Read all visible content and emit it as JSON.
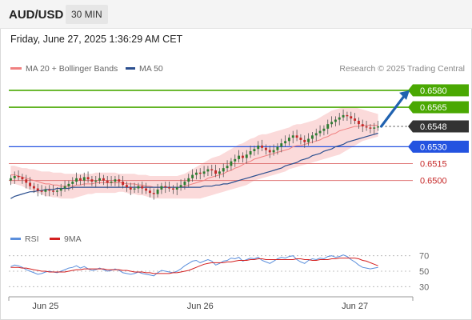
{
  "header": {
    "symbol": "AUD/USD",
    "timeframe": "30 MIN"
  },
  "timestamp": "Friday, June 27, 2025 1:36:29 AM CET",
  "credit": "Research © 2025 Trading Central",
  "colors": {
    "bull_candle": "#2e7d32",
    "bear_candle": "#c62828",
    "bollinger_fill": "#fbdada",
    "ma20": "#f08080",
    "ma50": "#2b4f8f",
    "green_level": "#4aa802",
    "blue_level": "#2453e0",
    "red_level": "#e07878",
    "arrow": "#2062b0",
    "rsi": "#5b8fdc",
    "rsi_ma": "#d42020"
  },
  "chart_data": [
    {
      "type": "candlestick",
      "title": "",
      "legend": [
        {
          "name": "MA 20 + Bollinger Bands",
          "color": "#f08080"
        },
        {
          "name": "MA 50",
          "color": "#2b4f8f"
        }
      ],
      "x_ticks": [
        "Jun 25",
        "Jun 26",
        "Jun 27"
      ],
      "ylim": [
        0.646,
        0.6592
      ],
      "levels": [
        {
          "label": "0.6580",
          "value": 0.658,
          "kind": "resistance"
        },
        {
          "label": "0.6565",
          "value": 0.6565,
          "kind": "resistance"
        },
        {
          "label": "0.6548",
          "value": 0.6548,
          "kind": "last_price"
        },
        {
          "label": "0.6530",
          "value": 0.653,
          "kind": "pivot"
        },
        {
          "label": "0.6515",
          "value": 0.6515,
          "kind": "support"
        },
        {
          "label": "0.6500",
          "value": 0.65,
          "kind": "support"
        }
      ],
      "close": [
        0.6502,
        0.6504,
        0.6503,
        0.6501,
        0.6498,
        0.6495,
        0.6493,
        0.6491,
        0.649,
        0.6492,
        0.6491,
        0.649,
        0.6491,
        0.6493,
        0.6495,
        0.6497,
        0.6499,
        0.6502,
        0.65,
        0.6503,
        0.6501,
        0.6499,
        0.65,
        0.6502,
        0.65,
        0.6498,
        0.6499,
        0.6501,
        0.6499,
        0.6496,
        0.6494,
        0.6492,
        0.6493,
        0.6495,
        0.6493,
        0.6491,
        0.6489,
        0.6488,
        0.6492,
        0.6495,
        0.6494,
        0.6493,
        0.6492,
        0.6494,
        0.6496,
        0.6499,
        0.6502,
        0.6505,
        0.6507,
        0.6506,
        0.6508,
        0.651,
        0.6509,
        0.6506,
        0.6508,
        0.6511,
        0.6513,
        0.6517,
        0.6519,
        0.6522,
        0.652,
        0.6523,
        0.6526,
        0.6528,
        0.6531,
        0.6529,
        0.6527,
        0.6525,
        0.6527,
        0.653,
        0.6533,
        0.6535,
        0.6538,
        0.654,
        0.6538,
        0.6536,
        0.6534,
        0.6537,
        0.654,
        0.6542,
        0.6544,
        0.6546,
        0.655,
        0.6552,
        0.6554,
        0.6556,
        0.6558,
        0.6557,
        0.6555,
        0.6553,
        0.655,
        0.6548,
        0.6547,
        0.6546,
        0.6547,
        0.6548
      ],
      "ma20": [
        0.6505,
        0.6505,
        0.6504,
        0.6503,
        0.6502,
        0.6501,
        0.65,
        0.6499,
        0.6498,
        0.6497,
        0.6497,
        0.6496,
        0.6496,
        0.6495,
        0.6495,
        0.6495,
        0.6495,
        0.6496,
        0.6496,
        0.6497,
        0.6497,
        0.6497,
        0.6498,
        0.6498,
        0.6498,
        0.6498,
        0.6498,
        0.6498,
        0.6498,
        0.6498,
        0.6497,
        0.6497,
        0.6497,
        0.6496,
        0.6496,
        0.6495,
        0.6495,
        0.6494,
        0.6494,
        0.6494,
        0.6494,
        0.6494,
        0.6494,
        0.6494,
        0.6494,
        0.6495,
        0.6496,
        0.6497,
        0.6498,
        0.6499,
        0.65,
        0.6502,
        0.6503,
        0.6504,
        0.6505,
        0.6506,
        0.6508,
        0.6509,
        0.6511,
        0.6512,
        0.6514,
        0.6516,
        0.6517,
        0.6519,
        0.652,
        0.6521,
        0.6522,
        0.6523,
        0.6524,
        0.6525,
        0.6526,
        0.6527,
        0.6528,
        0.653,
        0.6531,
        0.6531,
        0.6532,
        0.6533,
        0.6534,
        0.6535,
        0.6536,
        0.6538,
        0.6539,
        0.6541,
        0.6542,
        0.6544,
        0.6545,
        0.6546,
        0.6547,
        0.6548,
        0.6548,
        0.6549,
        0.6549,
        0.6549,
        0.6549,
        0.6549
      ],
      "bb_upper": [
        0.6513,
        0.6513,
        0.6512,
        0.6511,
        0.6511,
        0.651,
        0.651,
        0.6509,
        0.6508,
        0.6508,
        0.6508,
        0.6507,
        0.6507,
        0.6507,
        0.6506,
        0.6506,
        0.6506,
        0.6506,
        0.6506,
        0.6506,
        0.6506,
        0.6506,
        0.6507,
        0.6507,
        0.6507,
        0.6507,
        0.6507,
        0.6507,
        0.6506,
        0.6506,
        0.6506,
        0.6506,
        0.6506,
        0.6505,
        0.6505,
        0.6505,
        0.6504,
        0.6504,
        0.6504,
        0.6504,
        0.6504,
        0.6504,
        0.6504,
        0.6504,
        0.6505,
        0.6506,
        0.6508,
        0.651,
        0.6512,
        0.6514,
        0.6516,
        0.6518,
        0.652,
        0.6521,
        0.6522,
        0.6524,
        0.6526,
        0.6528,
        0.653,
        0.6532,
        0.6533,
        0.6535,
        0.6537,
        0.6538,
        0.654,
        0.6541,
        0.6541,
        0.6542,
        0.6543,
        0.6544,
        0.6545,
        0.6546,
        0.6547,
        0.6549,
        0.655,
        0.655,
        0.6551,
        0.6552,
        0.6553,
        0.6554,
        0.6556,
        0.6558,
        0.656,
        0.6562,
        0.6563,
        0.6564,
        0.6565,
        0.6565,
        0.6565,
        0.6565,
        0.6564,
        0.6563,
        0.6562,
        0.6561,
        0.656,
        0.6559
      ],
      "bb_lower": [
        0.6497,
        0.6497,
        0.6496,
        0.6495,
        0.6493,
        0.6492,
        0.649,
        0.6489,
        0.6488,
        0.6486,
        0.6486,
        0.6485,
        0.6485,
        0.6484,
        0.6484,
        0.6484,
        0.6484,
        0.6485,
        0.6486,
        0.6487,
        0.6488,
        0.6488,
        0.6489,
        0.6489,
        0.6489,
        0.6489,
        0.6489,
        0.6489,
        0.649,
        0.649,
        0.6489,
        0.6488,
        0.6488,
        0.6487,
        0.6487,
        0.6486,
        0.6485,
        0.6484,
        0.6484,
        0.6484,
        0.6484,
        0.6484,
        0.6484,
        0.6484,
        0.6484,
        0.6484,
        0.6484,
        0.6484,
        0.6484,
        0.6484,
        0.6485,
        0.6486,
        0.6487,
        0.6488,
        0.6489,
        0.649,
        0.6491,
        0.6492,
        0.6493,
        0.6494,
        0.6495,
        0.6496,
        0.6498,
        0.65,
        0.6501,
        0.6502,
        0.6503,
        0.6504,
        0.6505,
        0.6506,
        0.6507,
        0.6508,
        0.651,
        0.6511,
        0.6512,
        0.6513,
        0.6514,
        0.6515,
        0.6516,
        0.6517,
        0.6518,
        0.6519,
        0.652,
        0.6521,
        0.6522,
        0.6523,
        0.6525,
        0.6527,
        0.6529,
        0.6531,
        0.6533,
        0.6535,
        0.6536,
        0.6537,
        0.6538,
        0.6539
      ],
      "ma50": [
        0.6484,
        0.6486,
        0.6487,
        0.6488,
        0.6489,
        0.649,
        0.649,
        0.6491,
        0.6491,
        0.6492,
        0.6492,
        0.6492,
        0.6493,
        0.6493,
        0.6493,
        0.6493,
        0.6494,
        0.6494,
        0.6494,
        0.6494,
        0.6494,
        0.6494,
        0.6494,
        0.6494,
        0.6494,
        0.6494,
        0.6494,
        0.6494,
        0.6494,
        0.6494,
        0.6494,
        0.6494,
        0.6494,
        0.6494,
        0.6494,
        0.6494,
        0.6494,
        0.6494,
        0.6494,
        0.6494,
        0.6494,
        0.6494,
        0.6494,
        0.6494,
        0.6494,
        0.6494,
        0.6494,
        0.6494,
        0.6494,
        0.6494,
        0.6495,
        0.6495,
        0.6495,
        0.6496,
        0.6496,
        0.6497,
        0.6497,
        0.6498,
        0.6499,
        0.65,
        0.6501,
        0.6502,
        0.6503,
        0.6504,
        0.6505,
        0.6506,
        0.6507,
        0.6508,
        0.6509,
        0.651,
        0.6511,
        0.6513,
        0.6514,
        0.6515,
        0.6516,
        0.6518,
        0.6519,
        0.652,
        0.6522,
        0.6523,
        0.6524,
        0.6526,
        0.6527,
        0.6528,
        0.653,
        0.6531,
        0.6532,
        0.6534,
        0.6535,
        0.6536,
        0.6537,
        0.6538,
        0.6539,
        0.654,
        0.6541,
        0.6542
      ],
      "projection": {
        "from": 0.6548,
        "to": 0.658
      }
    },
    {
      "type": "line",
      "title": "",
      "legend": [
        {
          "name": "RSI",
          "color": "#5b8fdc"
        },
        {
          "name": "9MA",
          "color": "#d42020"
        }
      ],
      "y_ticks": [
        "70",
        "50",
        "30"
      ],
      "ylim": [
        20,
        80
      ],
      "rsi": [
        56,
        58,
        57,
        55,
        52,
        50,
        48,
        46,
        47,
        49,
        50,
        49,
        48,
        50,
        52,
        54,
        55,
        57,
        54,
        56,
        53,
        51,
        52,
        54,
        52,
        50,
        51,
        53,
        51,
        48,
        47,
        46,
        47,
        49,
        47,
        46,
        45,
        44,
        48,
        51,
        50,
        49,
        48,
        50,
        53,
        57,
        60,
        63,
        64,
        61,
        63,
        65,
        63,
        58,
        60,
        63,
        64,
        67,
        66,
        68,
        63,
        65,
        67,
        66,
        68,
        64,
        62,
        60,
        63,
        66,
        68,
        67,
        69,
        70,
        65,
        62,
        60,
        64,
        66,
        65,
        67,
        66,
        69,
        70,
        68,
        69,
        71,
        69,
        65,
        62,
        58,
        55,
        54,
        53,
        54,
        55
      ],
      "rsi_ma": [
        55,
        55,
        55,
        54,
        54,
        53,
        52,
        51,
        50,
        50,
        49,
        49,
        49,
        49,
        49,
        50,
        51,
        52,
        52,
        53,
        53,
        53,
        53,
        53,
        53,
        52,
        52,
        52,
        52,
        51,
        51,
        50,
        49,
        49,
        49,
        48,
        48,
        47,
        47,
        47,
        47,
        47,
        48,
        48,
        49,
        50,
        51,
        53,
        55,
        57,
        59,
        60,
        61,
        61,
        61,
        61,
        62,
        62,
        63,
        64,
        64,
        64,
        65,
        65,
        66,
        66,
        65,
        65,
        65,
        65,
        65,
        65,
        65,
        65,
        66,
        66,
        65,
        65,
        64,
        64,
        65,
        65,
        65,
        66,
        66,
        67,
        67,
        67,
        67,
        67,
        66,
        64,
        63,
        61,
        59,
        57
      ]
    }
  ]
}
